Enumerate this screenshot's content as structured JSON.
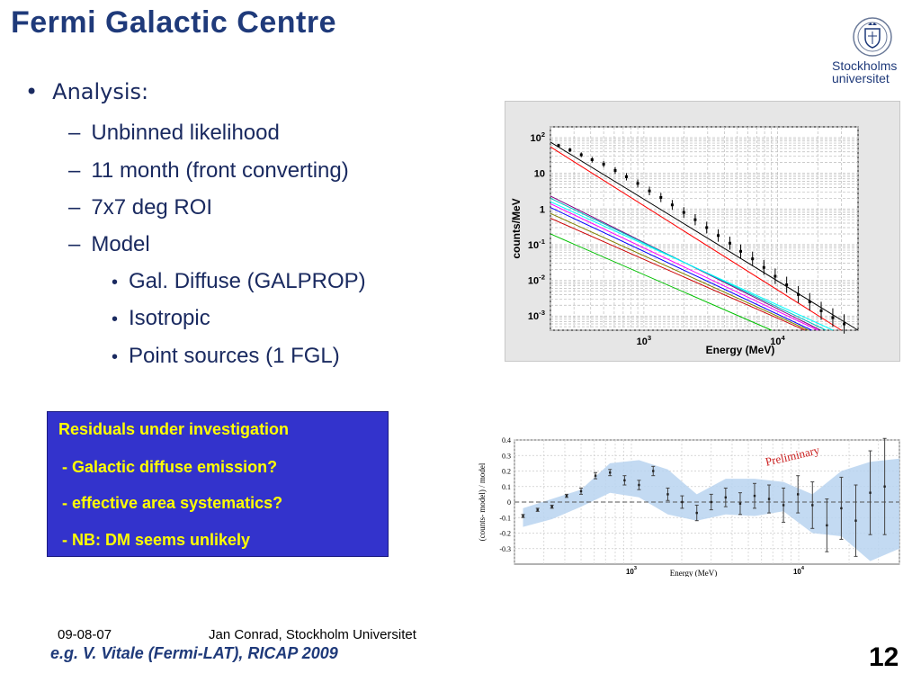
{
  "slide": {
    "title": "Fermi Galactic Centre",
    "logo": {
      "line1": "Stockholms",
      "line2": "universitet"
    },
    "bullets": {
      "level1": "Analysis:",
      "level2": [
        "Unbinned likelihood",
        "11 month (front converting)",
        "7x7 deg ROI",
        "Model"
      ],
      "level3": [
        "Gal. Diffuse (GALPROP)",
        "Isotropic",
        "Point sources (1 FGL)"
      ]
    },
    "residual_box": {
      "heading": "Residuals under investigation",
      "items": [
        "- Galactic diffuse emission?",
        "- effective area systematics?",
        "- NB: DM seems unlikely"
      ]
    },
    "footer": {
      "date": "09-08-07",
      "author": "Jan Conrad, Stockholm Universitet",
      "citation": "e.g. V. Vitale (Fermi-LAT), RICAP 2009",
      "page_number": "12"
    }
  },
  "colors": {
    "title": "#1f3a7a",
    "box_bg": "#3333cc",
    "box_text": "#ffff00",
    "band": "#b8d4f0"
  },
  "chart_data": [
    {
      "type": "line",
      "xlabel": "Energy (MeV)",
      "ylabel": "counts/MeV",
      "xscale": "log",
      "yscale": "log",
      "xlim": [
        200,
        40000
      ],
      "ylim": [
        0.0004,
        200
      ],
      "xticks": [
        {
          "label": "10",
          "sup": "3",
          "value": 1000
        },
        {
          "label": "10",
          "sup": "4",
          "value": 10000
        }
      ],
      "yticks": [
        {
          "label": "10",
          "sup": "2",
          "value": 100
        },
        {
          "label": "10",
          "sup": "",
          "value": 10
        },
        {
          "label": "1",
          "sup": "",
          "value": 1
        },
        {
          "label": "10",
          "sup": "-1",
          "value": 0.1
        },
        {
          "label": "10",
          "sup": "-2",
          "value": 0.01
        },
        {
          "label": "10",
          "sup": "-3",
          "value": 0.001
        }
      ],
      "grid": true,
      "data_points": {
        "x": [
          230,
          280,
          340,
          410,
          500,
          610,
          740,
          900,
          1100,
          1340,
          1630,
          1990,
          2420,
          2950,
          3600,
          4400,
          5300,
          6500,
          7900,
          9600,
          11700,
          14300,
          17400,
          21200,
          25900,
          31500
        ],
        "y": [
          60,
          45,
          33,
          24,
          18,
          12,
          8,
          5.2,
          3.2,
          2.1,
          1.3,
          0.8,
          0.5,
          0.3,
          0.18,
          0.11,
          0.065,
          0.04,
          0.023,
          0.013,
          0.0075,
          0.004,
          0.0025,
          0.0014,
          0.0009,
          0.0006
        ]
      },
      "series": [
        {
          "name": "",
          "color": "#000000",
          "x": [
            200,
            40000
          ],
          "y": [
            75,
            0.0004
          ]
        },
        {
          "name": "",
          "color": "#ff0000",
          "x": [
            200,
            30000
          ],
          "y": [
            55,
            0.0004
          ]
        },
        {
          "name": "",
          "color": "#800080",
          "x": [
            200,
            21000
          ],
          "y": [
            2.3,
            0.0004
          ]
        },
        {
          "name": "",
          "color": "#00c0c0",
          "x": [
            200,
            23000
          ],
          "y": [
            2.0,
            0.0004
          ]
        },
        {
          "name": "",
          "color": "#00ffff",
          "x": [
            200,
            26000
          ],
          "y": [
            1.6,
            0.0004
          ]
        },
        {
          "name": "",
          "color": "#ff00ff",
          "x": [
            200,
            20000
          ],
          "y": [
            1.4,
            0.0004
          ]
        },
        {
          "name": "",
          "color": "#0000ff",
          "x": [
            200,
            18000
          ],
          "y": [
            1.1,
            0.0004
          ]
        },
        {
          "name": "",
          "color": "#808000",
          "x": [
            200,
            17000
          ],
          "y": [
            0.75,
            0.0004
          ]
        },
        {
          "name": "",
          "color": "#cc0000",
          "x": [
            200,
            16000
          ],
          "y": [
            0.55,
            0.0004
          ]
        },
        {
          "name": "",
          "color": "#00c000",
          "x": [
            200,
            9000
          ],
          "y": [
            0.2,
            0.0004
          ]
        }
      ]
    },
    {
      "type": "scatter",
      "title": "Preliminary",
      "xlabel": "Energy (MeV)",
      "ylabel": "(counts- model) / model",
      "xscale": "log",
      "xlim": [
        200,
        40000
      ],
      "ylim": [
        -0.4,
        0.4
      ],
      "xticks": [
        {
          "label": "10",
          "sup": "3",
          "value": 1000
        },
        {
          "label": "10",
          "sup": "4",
          "value": 10000
        }
      ],
      "yticks": [
        "0.4",
        "0.3",
        "0.2",
        "0.1",
        "0",
        "-0.1",
        "-0.2",
        "-0.3"
      ],
      "grid": true,
      "points": {
        "x": [
          225,
          275,
          335,
          410,
          500,
          610,
          745,
          910,
          1110,
          1350,
          1650,
          2010,
          2460,
          3000,
          3660,
          4470,
          5450,
          6650,
          8110,
          9900,
          12080,
          14740,
          17980,
          21940,
          26770,
          32660
        ],
        "y": [
          -0.09,
          -0.05,
          -0.03,
          0.04,
          0.07,
          0.17,
          0.19,
          0.14,
          0.11,
          0.2,
          0.05,
          0.0,
          -0.07,
          0.0,
          0.03,
          -0.01,
          0.04,
          0.02,
          -0.02,
          0.05,
          -0.02,
          -0.15,
          -0.04,
          -0.12,
          0.06,
          0.1
        ],
        "err": [
          0.01,
          0.01,
          0.01,
          0.01,
          0.02,
          0.02,
          0.02,
          0.03,
          0.03,
          0.03,
          0.04,
          0.04,
          0.05,
          0.05,
          0.06,
          0.07,
          0.08,
          0.09,
          0.11,
          0.12,
          0.15,
          0.17,
          0.2,
          0.23,
          0.27,
          0.31
        ]
      },
      "band": {
        "x": [
          225,
          335,
          500,
          745,
          1110,
          1650,
          2460,
          3660,
          5450,
          8110,
          12080,
          17980,
          26770,
          40000
        ],
        "lower": [
          -0.16,
          -0.11,
          -0.03,
          0.06,
          0.03,
          -0.08,
          -0.12,
          -0.08,
          -0.09,
          -0.06,
          -0.2,
          -0.22,
          -0.38,
          -0.3
        ],
        "upper": [
          -0.04,
          0.02,
          0.08,
          0.25,
          0.27,
          0.21,
          0.05,
          0.15,
          0.15,
          0.13,
          0.05,
          0.2,
          0.26,
          0.28
        ]
      }
    }
  ]
}
